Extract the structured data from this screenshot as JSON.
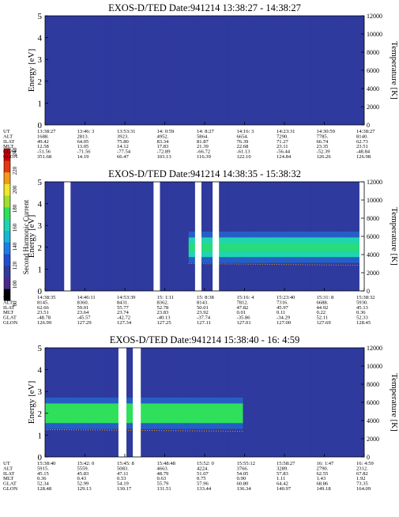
{
  "colorbar": {
    "label": "Second Harmonic Current",
    "ticks": [
      "80",
      "100",
      "120",
      "140",
      "160",
      "180",
      "200",
      "220",
      "240"
    ],
    "colors": [
      "#000000",
      "#4a2a8a",
      "#2e3a9e",
      "#1f4fd0",
      "#1f7ee6",
      "#17b6d6",
      "#1fd5b0",
      "#2ee05a",
      "#9fe02a",
      "#f0e62a",
      "#f39a18",
      "#e33a10",
      "#c8000a"
    ]
  },
  "chart_data": [
    {
      "type": "heatmap",
      "title": "EXOS-D/TED   Date:941214   13:38:27 - 14:38:27",
      "ylabel": "Energy [eV]",
      "ylabel_right": "Temperature [K]",
      "ylim": [
        0,
        5
      ],
      "yticks": [
        "0",
        "1",
        "2",
        "3",
        "4",
        "5"
      ],
      "ylim_right": [
        0,
        12000
      ],
      "yticks_right": [
        "0",
        "2000",
        "4000",
        "6000",
        "8000",
        "10000",
        "12000"
      ],
      "background_level": 100,
      "band": null,
      "gaps": [],
      "table": {
        "labels": [
          "UT",
          "ALT",
          "ILAT",
          "MLT",
          "GLAT",
          "GLON"
        ],
        "columns": [
          [
            "13:38:27",
            "1688.",
            "49.42",
            "12.58",
            "-51.56",
            "351.68"
          ],
          [
            "13:46: 3",
            "2813.",
            "64.05",
            "13.05",
            "-71.56",
            "14.19"
          ],
          [
            "13:53:31",
            "3923.",
            "75.80",
            "14.12",
            "-77.54",
            "66.47"
          ],
          [
            "14: 0:59",
            "4952.",
            "83.34",
            "17.83",
            "-72.89",
            "103.13"
          ],
          [
            "14: 8:27",
            "5864.",
            "81.87",
            "21.39",
            "-66.72",
            "116.39"
          ],
          [
            "14:16: 3",
            "6654.",
            "76.39",
            "22.68",
            "-61.13",
            "122.10"
          ],
          [
            "14:23:31",
            "7290.",
            "71.27",
            "23.11",
            "-56.44",
            "124.84"
          ],
          [
            "14:30:59",
            "7785.",
            "66.74",
            "23.35",
            "-52.39",
            "126.26"
          ],
          [
            "14:38:27",
            "8140.",
            "62.73",
            "23.51",
            "-48.84",
            "126.98"
          ]
        ]
      }
    },
    {
      "type": "heatmap",
      "title": "EXOS-D/TED   Date:941214   14:38:35 - 15:38:32",
      "ylabel": "Energy [eV]",
      "ylabel_right": "Temperature [K]",
      "ylim": [
        0,
        5
      ],
      "yticks": [
        "0",
        "1",
        "2",
        "3",
        "4",
        "5"
      ],
      "ylim_right": [
        0,
        12000
      ],
      "yticks_right": [
        "0",
        "2000",
        "4000",
        "6000",
        "8000",
        "10000",
        "12000"
      ],
      "background_level": 110,
      "band": {
        "center_ev": 2.0,
        "halfwidth_ev": 0.45,
        "level": 160,
        "start": 0.45,
        "end": 0.985
      },
      "gaps": [
        [
          0.06,
          0.08
        ],
        [
          0.34,
          0.36
        ],
        [
          0.47,
          0.49
        ],
        [
          0.525,
          0.545
        ],
        [
          0.985,
          1.0
        ]
      ],
      "table": {
        "labels": [
          "UT",
          "ALT",
          "ILAT",
          "MLT",
          "GLAT",
          "GLON"
        ],
        "columns": [
          [
            "14:38:35",
            "8145.",
            "62.66",
            "23.51",
            "-48.78",
            "126.99"
          ],
          [
            "14:46:11",
            "8360.",
            "59.01",
            "23.64",
            "-45.57",
            "127.29"
          ],
          [
            "14:53:39",
            "8431.",
            "55.77",
            "23.74",
            "-42.72",
            "127.34"
          ],
          [
            "15: 1:11",
            "8362.",
            "52.78",
            "23.83",
            "-40.13",
            "127.25"
          ],
          [
            "15: 8:38",
            "8143.",
            "50.01",
            "23.92",
            "-37.74",
            "127.11"
          ],
          [
            "15:16: 4",
            "7812.",
            "47.82",
            "0.01",
            "-35.86",
            "127.01"
          ],
          [
            "15:23:40",
            "7316.",
            "45.97",
            "0.11",
            "-34.29",
            "127.00"
          ],
          [
            "15:31: 8",
            "6688.",
            "44.92",
            "0.22",
            "52.11",
            "127.69"
          ],
          [
            "15:38:32",
            "5930.",
            "45.13",
            "0.36",
            "52.33",
            "128.45"
          ]
        ]
      }
    },
    {
      "type": "heatmap",
      "title": "EXOS-D/TED   Date:941214   15:38:40 - 16: 4:59",
      "ylabel": "Energy [eV]",
      "ylabel_right": "Temperature [K]",
      "ylim": [
        0,
        5
      ],
      "yticks": [
        "0",
        "1",
        "2",
        "3",
        "4",
        "5"
      ],
      "ylim_right": [
        0,
        12000
      ],
      "yticks_right": [
        "0",
        "2000",
        "4000",
        "6000",
        "8000",
        "10000",
        "12000"
      ],
      "background_level": 110,
      "band": {
        "center_ev": 2.0,
        "halfwidth_ev": 0.45,
        "level": 170,
        "start": 0.0,
        "end": 0.62
      },
      "gaps": [
        [
          0.23,
          0.255
        ],
        [
          0.275,
          0.3
        ]
      ],
      "table": {
        "labels": [
          "UT",
          "ALT",
          "ILAT",
          "MLT",
          "GLAT",
          "GLON"
        ],
        "columns": [
          [
            "15:38:40",
            "5915.",
            "45.15",
            "0.36",
            "52.34",
            "128.48"
          ],
          [
            "15:42: 0",
            "5559.",
            "45.83",
            "0.43",
            "52.99",
            "129.13"
          ],
          [
            "15:45: 8",
            "5083.",
            "47.11",
            "0.53",
            "54.19",
            "130.17"
          ],
          [
            "15:48:48",
            "4663.",
            "48.79",
            "0.63",
            "55.79",
            "131.51"
          ],
          [
            "15:52: 0",
            "4224.",
            "51.07",
            "0.75",
            "57.96",
            "133.44"
          ],
          [
            "15:55:12",
            "3766.",
            "54.05",
            "0.90",
            "60.80",
            "136.34"
          ],
          [
            "15:58:27",
            "3289.",
            "57.83",
            "1.11",
            "64.42",
            "140.97"
          ],
          [
            "16: 1:47",
            "2790.",
            "62.55",
            "1.43",
            "68.86",
            "149.18"
          ],
          [
            "16: 4:59",
            "2312.",
            "67.82",
            "1.92",
            "73.35",
            "164.09"
          ]
        ]
      }
    }
  ]
}
